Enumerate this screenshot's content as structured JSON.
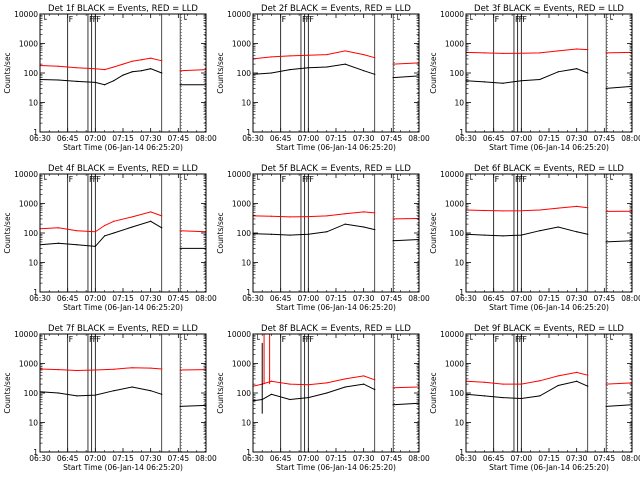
{
  "chart_data": [
    {
      "type": "line",
      "title": "Det 1f BLACK = Events, RED = LLD",
      "xlabel": "Start Time (06-Jan-14 06:25:20)",
      "ylabel": "Counts/sec",
      "yscale": "log",
      "ylim": [
        1,
        10000
      ],
      "xlim": [
        "06:30",
        "08:00"
      ],
      "xticks": [
        "06:30",
        "06:45",
        "07:00",
        "07:15",
        "07:30",
        "07:45",
        "08:00"
      ],
      "yticks": [
        "1",
        "10",
        "100",
        "1000",
        "10000"
      ],
      "gap": [
        "07:36",
        "07:46"
      ],
      "flags": [
        {
          "time": "06:45",
          "label": "F"
        },
        {
          "time": "06:56",
          "label": "F"
        },
        {
          "time": "06:58",
          "label": "F"
        },
        {
          "time": "07:00",
          "label": "F"
        }
      ],
      "series": [
        {
          "name": "Events",
          "color": "#000000",
          "x": [
            "06:30",
            "06:40",
            "06:50",
            "07:00",
            "07:05",
            "07:10",
            "07:15",
            "07:20",
            "07:25",
            "07:30",
            "07:36",
            "07:46",
            "08:00"
          ],
          "values": [
            60,
            58,
            52,
            48,
            40,
            55,
            85,
            110,
            120,
            140,
            100,
            40,
            40
          ]
        },
        {
          "name": "LLD",
          "color": "#ff0000",
          "x": [
            "06:30",
            "06:40",
            "06:50",
            "07:00",
            "07:05",
            "07:10",
            "07:15",
            "07:20",
            "07:25",
            "07:30",
            "07:36",
            "07:46",
            "08:00"
          ],
          "values": [
            180,
            170,
            150,
            140,
            130,
            160,
            200,
            250,
            280,
            320,
            260,
            120,
            130
          ]
        }
      ]
    },
    {
      "type": "line",
      "title": "Det 2f BLACK = Events, RED = LLD",
      "xlabel": "Start Time (06-Jan-14 06:25:20)",
      "ylabel": "Counts/sec",
      "yscale": "log",
      "ylim": [
        1,
        10000
      ],
      "xlim": [
        "06:30",
        "08:00"
      ],
      "xticks": [
        "06:30",
        "06:45",
        "07:00",
        "07:15",
        "07:30",
        "07:45",
        "08:00"
      ],
      "yticks": [
        "1",
        "10",
        "100",
        "1000",
        "10000"
      ],
      "gap": [
        "07:36",
        "07:46"
      ],
      "flags": [
        {
          "time": "06:45",
          "label": "F"
        },
        {
          "time": "06:56",
          "label": "F"
        },
        {
          "time": "06:58",
          "label": "F"
        },
        {
          "time": "07:00",
          "label": "F"
        }
      ],
      "series": [
        {
          "name": "Events",
          "color": "#000000",
          "x": [
            "06:30",
            "06:40",
            "06:50",
            "07:00",
            "07:10",
            "07:20",
            "07:30",
            "07:36",
            "07:46",
            "08:00"
          ],
          "values": [
            90,
            100,
            130,
            150,
            160,
            200,
            120,
            90,
            70,
            80
          ]
        },
        {
          "name": "LLD",
          "color": "#ff0000",
          "x": [
            "06:30",
            "06:40",
            "06:50",
            "07:00",
            "07:10",
            "07:20",
            "07:30",
            "07:36",
            "07:46",
            "08:00"
          ],
          "values": [
            300,
            350,
            380,
            400,
            420,
            560,
            420,
            330,
            200,
            220
          ]
        }
      ]
    },
    {
      "type": "line",
      "title": "Det 3f BLACK = Events, RED = LLD",
      "xlabel": "Start Time (06-Jan-14 06:25:20)",
      "ylabel": "Counts/sec",
      "yscale": "log",
      "ylim": [
        1,
        10000
      ],
      "xlim": [
        "06:30",
        "08:00"
      ],
      "xticks": [
        "06:30",
        "06:45",
        "07:00",
        "07:15",
        "07:30",
        "07:45",
        "08:00"
      ],
      "yticks": [
        "1",
        "10",
        "100",
        "1000",
        "10000"
      ],
      "gap": [
        "07:36",
        "07:46"
      ],
      "flags": [
        {
          "time": "06:45",
          "label": "F"
        },
        {
          "time": "06:56",
          "label": "F"
        },
        {
          "time": "06:58",
          "label": "F"
        },
        {
          "time": "07:00",
          "label": "F"
        }
      ],
      "series": [
        {
          "name": "Events",
          "color": "#000000",
          "x": [
            "06:30",
            "06:40",
            "06:50",
            "07:00",
            "07:10",
            "07:20",
            "07:30",
            "07:36",
            "07:46",
            "08:00"
          ],
          "values": [
            55,
            50,
            45,
            55,
            60,
            110,
            140,
            100,
            30,
            35
          ]
        },
        {
          "name": "LLD",
          "color": "#ff0000",
          "x": [
            "06:30",
            "06:40",
            "06:50",
            "07:00",
            "07:10",
            "07:20",
            "07:30",
            "07:36",
            "07:46",
            "08:00"
          ],
          "values": [
            500,
            480,
            460,
            470,
            480,
            560,
            650,
            620,
            480,
            500
          ]
        }
      ]
    },
    {
      "type": "line",
      "title": "Det 4f BLACK = Events, RED = LLD",
      "xlabel": "Start Time (06-Jan-14 06:25:20)",
      "ylabel": "Counts/sec",
      "yscale": "log",
      "ylim": [
        1,
        10000
      ],
      "xlim": [
        "06:30",
        "08:00"
      ],
      "xticks": [
        "06:30",
        "06:45",
        "07:00",
        "07:15",
        "07:30",
        "07:45",
        "08:00"
      ],
      "yticks": [
        "1",
        "10",
        "100",
        "1000",
        "10000"
      ],
      "gap": [
        "07:36",
        "07:46"
      ],
      "flags": [
        {
          "time": "06:45",
          "label": "F"
        },
        {
          "time": "06:56",
          "label": "F"
        },
        {
          "time": "06:58",
          "label": "F"
        },
        {
          "time": "07:00",
          "label": "F"
        }
      ],
      "series": [
        {
          "name": "Events",
          "color": "#000000",
          "x": [
            "06:30",
            "06:40",
            "06:50",
            "07:00",
            "07:05",
            "07:10",
            "07:20",
            "07:30",
            "07:36",
            "07:46",
            "08:00"
          ],
          "values": [
            40,
            45,
            40,
            35,
            80,
            100,
            160,
            250,
            150,
            30,
            30
          ]
        },
        {
          "name": "LLD",
          "color": "#ff0000",
          "x": [
            "06:30",
            "06:40",
            "06:50",
            "07:00",
            "07:05",
            "07:10",
            "07:20",
            "07:30",
            "07:36",
            "07:46",
            "08:00"
          ],
          "values": [
            140,
            150,
            120,
            110,
            180,
            250,
            350,
            520,
            380,
            120,
            110
          ]
        }
      ]
    },
    {
      "type": "line",
      "title": "Det 5f BLACK = Events, RED = LLD",
      "xlabel": "Start Time (06-Jan-14 06:25:20)",
      "ylabel": "Counts/sec",
      "yscale": "log",
      "ylim": [
        1,
        10000
      ],
      "xlim": [
        "06:30",
        "08:00"
      ],
      "xticks": [
        "06:30",
        "06:45",
        "07:00",
        "07:15",
        "07:30",
        "07:45",
        "08:00"
      ],
      "yticks": [
        "1",
        "10",
        "100",
        "1000",
        "10000"
      ],
      "gap": [
        "07:36",
        "07:46"
      ],
      "flags": [
        {
          "time": "06:45",
          "label": "F"
        },
        {
          "time": "06:56",
          "label": "F"
        },
        {
          "time": "06:58",
          "label": "F"
        },
        {
          "time": "07:00",
          "label": "F"
        }
      ],
      "series": [
        {
          "name": "Events",
          "color": "#000000",
          "x": [
            "06:30",
            "06:40",
            "06:50",
            "07:00",
            "07:10",
            "07:20",
            "07:30",
            "07:36",
            "07:46",
            "08:00"
          ],
          "values": [
            95,
            90,
            85,
            90,
            110,
            200,
            160,
            130,
            55,
            60
          ]
        },
        {
          "name": "LLD",
          "color": "#ff0000",
          "x": [
            "06:30",
            "06:40",
            "06:50",
            "07:00",
            "07:10",
            "07:20",
            "07:30",
            "07:36",
            "07:46",
            "08:00"
          ],
          "values": [
            380,
            370,
            350,
            360,
            380,
            450,
            520,
            480,
            300,
            310
          ]
        }
      ]
    },
    {
      "type": "line",
      "title": "Det 6f BLACK = Events, RED = LLD",
      "xlabel": "Start Time (06-Jan-14 06:25:20)",
      "ylabel": "Counts/sec",
      "yscale": "log",
      "ylim": [
        1,
        10000
      ],
      "xlim": [
        "06:30",
        "08:00"
      ],
      "xticks": [
        "06:30",
        "06:45",
        "07:00",
        "07:15",
        "07:30",
        "07:45",
        "08:00"
      ],
      "yticks": [
        "1",
        "10",
        "100",
        "1000",
        "10000"
      ],
      "gap": [
        "07:36",
        "07:46"
      ],
      "flags": [
        {
          "time": "06:45",
          "label": "F"
        },
        {
          "time": "06:56",
          "label": "F"
        },
        {
          "time": "06:58",
          "label": "F"
        },
        {
          "time": "07:00",
          "label": "F"
        }
      ],
      "series": [
        {
          "name": "Events",
          "color": "#000000",
          "x": [
            "06:30",
            "06:40",
            "06:50",
            "07:00",
            "07:10",
            "07:20",
            "07:30",
            "07:36",
            "07:46",
            "08:00"
          ],
          "values": [
            90,
            85,
            80,
            85,
            120,
            160,
            110,
            90,
            50,
            55
          ]
        },
        {
          "name": "LLD",
          "color": "#ff0000",
          "x": [
            "06:30",
            "06:40",
            "06:50",
            "07:00",
            "07:10",
            "07:20",
            "07:30",
            "07:36",
            "07:46",
            "08:00"
          ],
          "values": [
            600,
            580,
            560,
            570,
            600,
            700,
            800,
            720,
            540,
            550
          ]
        }
      ]
    },
    {
      "type": "line",
      "title": "Det 7f BLACK = Events, RED = LLD",
      "xlabel": "Start Time (06-Jan-14 06:25:20)",
      "ylabel": "Counts/sec",
      "yscale": "log",
      "ylim": [
        1,
        10000
      ],
      "xlim": [
        "06:30",
        "08:00"
      ],
      "xticks": [
        "06:30",
        "06:45",
        "07:00",
        "07:15",
        "07:30",
        "07:45",
        "08:00"
      ],
      "yticks": [
        "1",
        "10",
        "100",
        "1000",
        "10000"
      ],
      "gap": [
        "07:36",
        "07:46"
      ],
      "flags": [
        {
          "time": "06:45",
          "label": "F"
        },
        {
          "time": "06:56",
          "label": "F"
        },
        {
          "time": "06:58",
          "label": "F"
        },
        {
          "time": "07:00",
          "label": "F"
        }
      ],
      "series": [
        {
          "name": "Events",
          "color": "#000000",
          "x": [
            "06:30",
            "06:40",
            "06:50",
            "07:00",
            "07:10",
            "07:20",
            "07:30",
            "07:36",
            "07:46",
            "08:00"
          ],
          "values": [
            110,
            100,
            80,
            85,
            120,
            160,
            120,
            90,
            35,
            38
          ]
        },
        {
          "name": "LLD",
          "color": "#ff0000",
          "x": [
            "06:30",
            "06:40",
            "06:50",
            "07:00",
            "07:10",
            "07:20",
            "07:30",
            "07:36",
            "07:46",
            "08:00"
          ],
          "values": [
            650,
            620,
            580,
            600,
            640,
            720,
            700,
            650,
            600,
            620
          ]
        }
      ]
    },
    {
      "type": "line",
      "title": "Det 8f BLACK = Events, RED = LLD",
      "xlabel": "Start Time (06-Jan-14 06:25:20)",
      "ylabel": "Counts/sec",
      "yscale": "log",
      "ylim": [
        1,
        10000
      ],
      "xlim": [
        "06:30",
        "08:00"
      ],
      "xticks": [
        "06:30",
        "06:45",
        "07:00",
        "07:15",
        "07:30",
        "07:45",
        "08:00"
      ],
      "yticks": [
        "1",
        "10",
        "100",
        "1000",
        "10000"
      ],
      "gap": [
        "07:36",
        "07:46"
      ],
      "flags": [
        {
          "time": "06:45",
          "label": "F"
        },
        {
          "time": "06:56",
          "label": "F"
        },
        {
          "time": "06:58",
          "label": "F"
        },
        {
          "time": "07:00",
          "label": "F"
        }
      ],
      "spikes": [
        {
          "time": "06:35",
          "values": [
            5000,
            20
          ],
          "color": "#000000"
        },
        {
          "time": "06:36",
          "values": [
            10000,
            200
          ],
          "color": "#ff0000"
        },
        {
          "time": "06:39",
          "values": [
            10000,
            200
          ],
          "color": "#ff0000"
        }
      ],
      "series": [
        {
          "name": "Events",
          "color": "#000000",
          "x": [
            "06:30",
            "06:35",
            "06:40",
            "06:50",
            "07:00",
            "07:10",
            "07:20",
            "07:30",
            "07:36",
            "07:46",
            "08:00"
          ],
          "values": [
            55,
            60,
            90,
            60,
            70,
            100,
            160,
            200,
            130,
            40,
            45
          ]
        },
        {
          "name": "LLD",
          "color": "#ff0000",
          "x": [
            "06:30",
            "06:35",
            "06:40",
            "06:50",
            "07:00",
            "07:10",
            "07:20",
            "07:30",
            "07:36",
            "07:46",
            "08:00"
          ],
          "values": [
            170,
            200,
            250,
            200,
            190,
            220,
            300,
            380,
            280,
            150,
            160
          ]
        }
      ]
    },
    {
      "type": "line",
      "title": "Det 9f BLACK = Events, RED = LLD",
      "xlabel": "Start Time (06-Jan-14 06:25:20)",
      "ylabel": "Counts/sec",
      "yscale": "log",
      "ylim": [
        1,
        10000
      ],
      "xlim": [
        "06:30",
        "08:00"
      ],
      "xticks": [
        "06:30",
        "06:45",
        "07:00",
        "07:15",
        "07:30",
        "07:45",
        "08:00"
      ],
      "yticks": [
        "1",
        "10",
        "100",
        "1000",
        "10000"
      ],
      "gap": [
        "07:36",
        "07:46"
      ],
      "flags": [
        {
          "time": "06:45",
          "label": "F"
        },
        {
          "time": "06:56",
          "label": "F"
        },
        {
          "time": "06:58",
          "label": "F"
        },
        {
          "time": "07:00",
          "label": "F"
        }
      ],
      "series": [
        {
          "name": "Events",
          "color": "#000000",
          "x": [
            "06:30",
            "06:40",
            "06:50",
            "07:00",
            "07:10",
            "07:20",
            "07:30",
            "07:36",
            "07:46",
            "08:00"
          ],
          "values": [
            90,
            80,
            70,
            65,
            80,
            180,
            250,
            170,
            35,
            40
          ]
        },
        {
          "name": "LLD",
          "color": "#ff0000",
          "x": [
            "06:30",
            "06:40",
            "06:50",
            "07:00",
            "07:10",
            "07:20",
            "07:30",
            "07:36",
            "07:46",
            "08:00"
          ],
          "values": [
            250,
            230,
            200,
            200,
            260,
            380,
            500,
            400,
            200,
            220
          ]
        }
      ]
    }
  ]
}
